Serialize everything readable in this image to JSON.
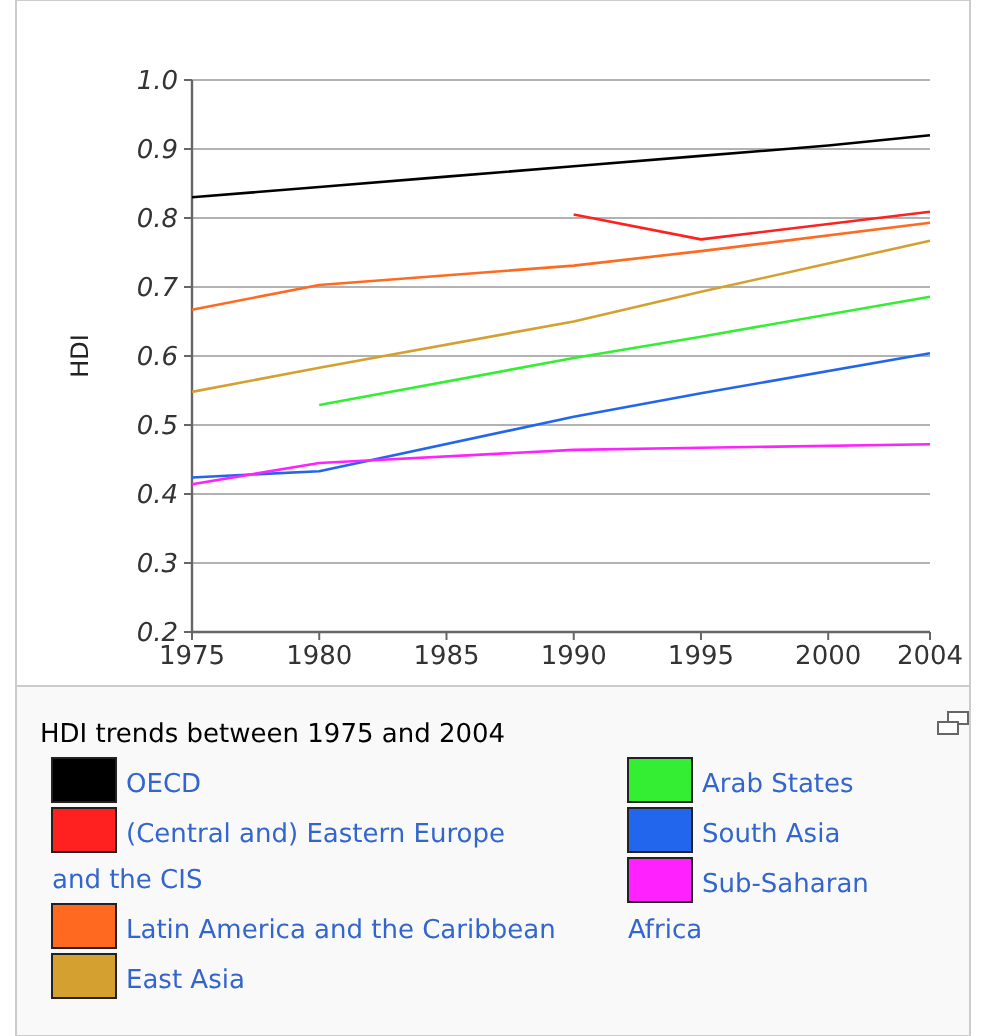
{
  "chart_data": {
    "type": "line",
    "title": "HDI trends between 1975 and 2004",
    "ylabel": "HDI",
    "xlim": [
      1975,
      2004
    ],
    "xticks": [
      1975,
      1980,
      1985,
      1990,
      1995,
      2000,
      2004
    ],
    "ylim": [
      0.2,
      1.0
    ],
    "yticks": [
      {
        "value": 0.2,
        "label": "0.2"
      },
      {
        "value": 0.3,
        "label": "0.3"
      },
      {
        "value": 0.4,
        "label": "0.4"
      },
      {
        "value": 0.5,
        "label": "0.5"
      },
      {
        "value": 0.6,
        "label": "0.6"
      },
      {
        "value": 0.7,
        "label": "0.7"
      },
      {
        "value": 0.8,
        "label": "0.8"
      },
      {
        "value": 0.9,
        "label": "0.9"
      },
      {
        "value": 1.0,
        "label": "1.0"
      }
    ],
    "grid": "y",
    "legend": "bottom",
    "marker": "none",
    "line_style": "solid",
    "series": [
      {
        "name": "OECD",
        "color": "#000000",
        "x": [
          1975,
          1980,
          1985,
          1990,
          1995,
          2000,
          2004
        ],
        "values": [
          0.83,
          0.845,
          0.86,
          0.875,
          0.89,
          0.905,
          0.92
        ]
      },
      {
        "name": "(Central and) Eastern Europe and the CIS",
        "color": "#ff2020",
        "x": [
          1990,
          1995,
          2004
        ],
        "values": [
          0.805,
          0.769,
          0.809
        ]
      },
      {
        "name": "Latin America and the Caribbean",
        "color": "#ff6a20",
        "x": [
          1975,
          1980,
          1990,
          1995,
          2004
        ],
        "values": [
          0.667,
          0.703,
          0.731,
          0.752,
          0.793
        ]
      },
      {
        "name": "East Asia",
        "color": "#d4a030",
        "x": [
          1975,
          1980,
          1990,
          1995,
          2004
        ],
        "values": [
          0.548,
          0.583,
          0.65,
          0.693,
          0.767
        ]
      },
      {
        "name": "Arab States",
        "color": "#33ee33",
        "x": [
          1980,
          1990,
          1995,
          2004
        ],
        "values": [
          0.529,
          0.597,
          0.628,
          0.686
        ]
      },
      {
        "name": "South Asia",
        "color": "#2266ee",
        "x": [
          1975,
          1980,
          1990,
          1995,
          2004
        ],
        "values": [
          0.424,
          0.433,
          0.512,
          0.546,
          0.604
        ]
      },
      {
        "name": "Sub-Saharan Africa",
        "color": "#ff22ff",
        "x": [
          1975,
          1980,
          1990,
          1995,
          2004
        ],
        "values": [
          0.414,
          0.445,
          0.464,
          0.467,
          0.472
        ]
      }
    ]
  }
}
